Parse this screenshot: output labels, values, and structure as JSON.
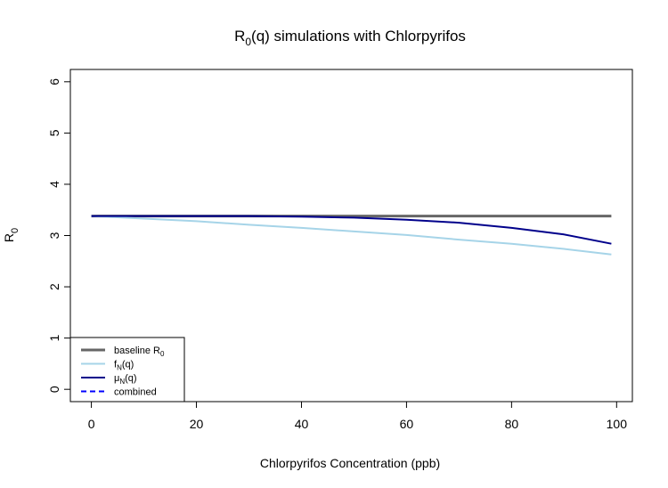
{
  "chart_data": {
    "type": "line",
    "title": "R0(q) simulations with Chlorpyrifos",
    "title_parts": {
      "main": "R",
      "sub": "0",
      "rest": "(q) simulations with Chlorpyrifos"
    },
    "xlabel": "Chlorpyrifos Concentration (ppb)",
    "ylabel": "R0",
    "ylabel_parts": {
      "main": "R",
      "sub": "0"
    },
    "xlim": [
      -4,
      103
    ],
    "ylim": [
      -0.24,
      6.24
    ],
    "xticks": [
      0,
      20,
      40,
      60,
      80,
      100
    ],
    "yticks": [
      0,
      1,
      2,
      3,
      4,
      5,
      6
    ],
    "grid": false,
    "legend_position": "bottom-left",
    "series": [
      {
        "name": "baseline R0",
        "label_parts": {
          "main": "baseline R",
          "sub": "0",
          "rest": ""
        },
        "color": "#666666",
        "dash": "solid",
        "x": [
          0,
          10,
          20,
          30,
          40,
          50,
          60,
          70,
          80,
          90,
          99
        ],
        "y": [
          3.38,
          3.38,
          3.38,
          3.38,
          3.38,
          3.38,
          3.38,
          3.38,
          3.38,
          3.38,
          3.38
        ]
      },
      {
        "name": "fN(q)",
        "label_parts": {
          "main": "f",
          "sub": "N",
          "rest": "(q)"
        },
        "color": "#a6d4e8",
        "dash": "solid",
        "x": [
          0,
          10,
          20,
          30,
          40,
          50,
          60,
          70,
          80,
          90,
          99
        ],
        "y": [
          3.38,
          3.33,
          3.28,
          3.21,
          3.15,
          3.08,
          3.01,
          2.92,
          2.84,
          2.74,
          2.63
        ]
      },
      {
        "name": "μN(q)",
        "label_parts": {
          "main": "μ",
          "sub": "N",
          "rest": "(q)"
        },
        "color": "#00008b",
        "dash": "solid",
        "x": [
          0,
          10,
          20,
          30,
          40,
          50,
          60,
          70,
          80,
          90,
          99
        ],
        "y": [
          3.38,
          3.38,
          3.38,
          3.38,
          3.37,
          3.35,
          3.31,
          3.25,
          3.15,
          3.02,
          2.84
        ]
      },
      {
        "name": "combined",
        "label_parts": {
          "main": "combined",
          "sub": "",
          "rest": ""
        },
        "color": "#0000ff",
        "dash": "dashed",
        "x": [],
        "y": []
      }
    ]
  }
}
